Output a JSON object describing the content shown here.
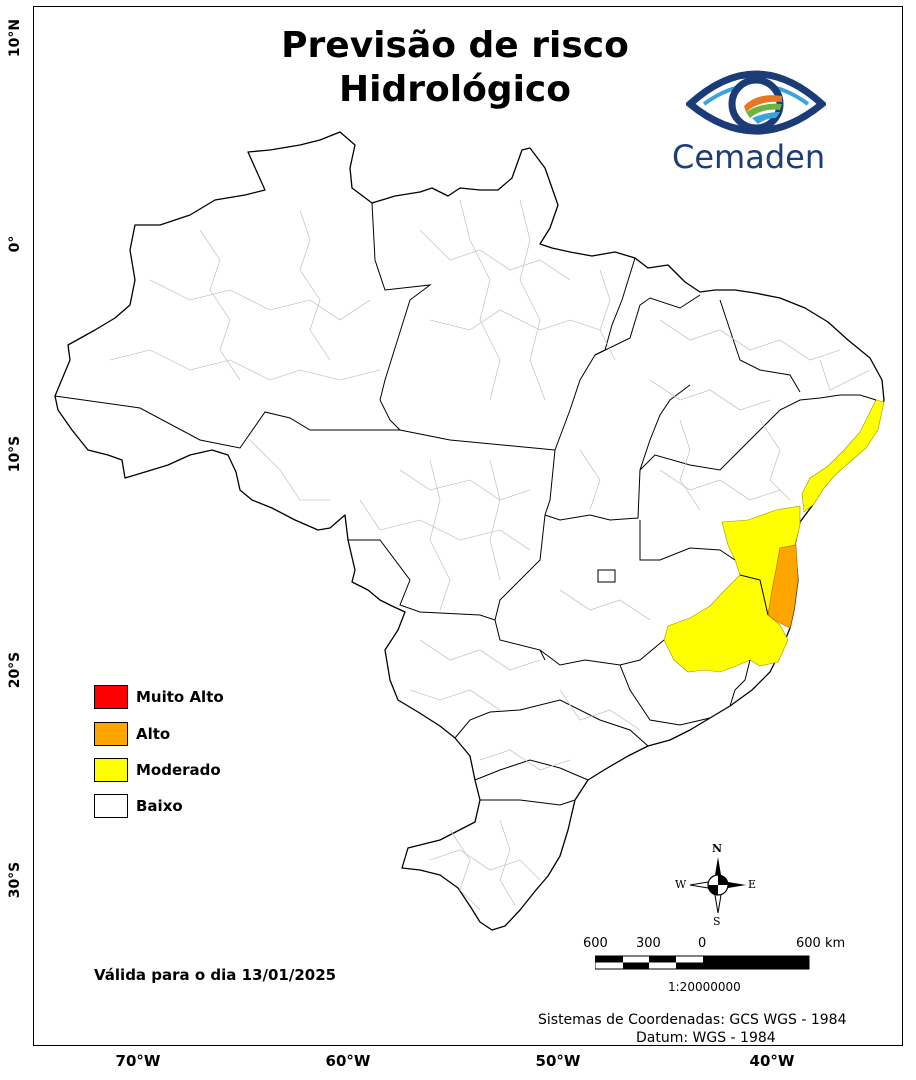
{
  "title": {
    "line1": "Previsão de risco",
    "line2": "Hidrológico"
  },
  "logo": {
    "text": "Cemaden",
    "icon": "eye-logo-icon"
  },
  "latitude_labels": [
    "10°N",
    "0°",
    "10°S",
    "20°S",
    "30°S"
  ],
  "longitude_labels": [
    "70°W",
    "60°W",
    "50°W",
    "40°W"
  ],
  "legend": {
    "items": [
      {
        "label": "Muito Alto",
        "color": "#ff0000"
      },
      {
        "label": "Alto",
        "color": "#ffa500"
      },
      {
        "label": "Moderado",
        "color": "#ffff00"
      },
      {
        "label": "Baixo",
        "color": "#ffffff"
      }
    ]
  },
  "valid_date": "Válida para o dia 13/01/2025",
  "compass": {
    "n": "N",
    "s": "S",
    "e": "E",
    "w": "W"
  },
  "scale_bar": {
    "labels": [
      "600",
      "300",
      "0",
      "600 km"
    ],
    "ratio": "1:20000000"
  },
  "footer": {
    "coord_system": "Sistemas de Coordenadas: GCS WGS - 1984",
    "datum": "Datum: WGS - 1984"
  },
  "colors": {
    "moderado": "#ffff00",
    "alto": "#ffa500",
    "muito_alto": "#ff0000",
    "border": "#000000",
    "municipal_border": "#c8c8c8",
    "logo_blue": "#1c3c78"
  }
}
